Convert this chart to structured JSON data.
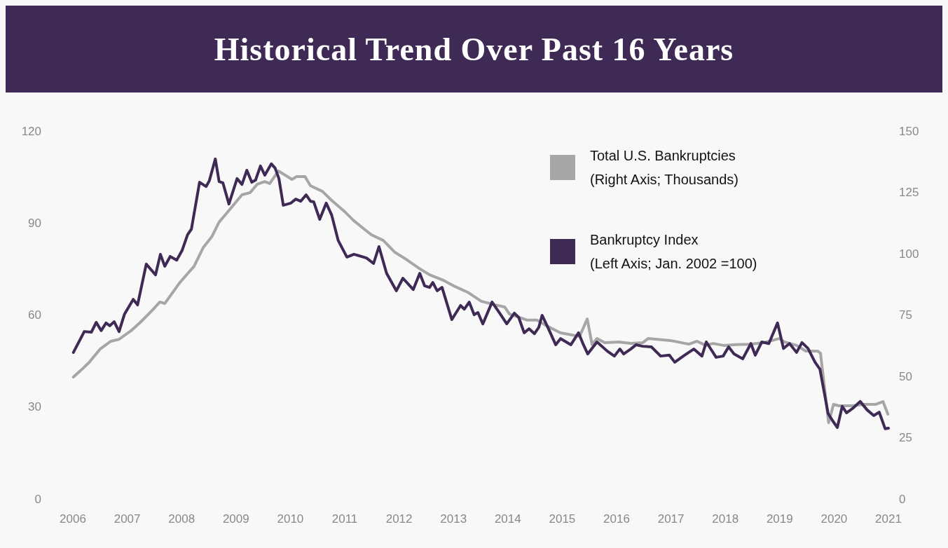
{
  "chart_data": {
    "type": "line",
    "title": "Historical Trend Over Past 16 Years",
    "xlim": [
      2006,
      2021
    ],
    "xticks": [
      2006,
      2007,
      2008,
      2009,
      2010,
      2011,
      2012,
      2013,
      2014,
      2015,
      2016,
      2017,
      2018,
      2019,
      2020,
      2021
    ],
    "ylim": [
      0,
      120
    ],
    "yticks": [
      0,
      30,
      60,
      90,
      120
    ],
    "y2lim": [
      0,
      150
    ],
    "y2ticks": [
      0,
      25,
      50,
      75,
      100,
      125,
      150
    ],
    "grid": false,
    "legend": "top right",
    "marker": "none",
    "line_style": "solid",
    "series": [
      {
        "name": "Total U.S. Bankruptcies (Right Axis; Thousands)",
        "color": "#a6a6a6",
        "axis": "y2",
        "x": [
          2006.01,
          2006.17,
          2006.3,
          2006.5,
          2006.7,
          2006.85,
          2007.07,
          2007.24,
          2007.46,
          2007.6,
          2007.69,
          2007.97,
          2008.23,
          2008.4,
          2008.56,
          2008.69,
          2008.82,
          2009.11,
          2009.26,
          2009.39,
          2009.53,
          2009.62,
          2009.78,
          2010.03,
          2010.11,
          2010.27,
          2010.37,
          2010.59,
          2010.76,
          2011.01,
          2011.17,
          2011.36,
          2011.49,
          2011.71,
          2011.92,
          2012.13,
          2012.35,
          2012.56,
          2012.82,
          2013.0,
          2013.26,
          2013.51,
          2013.77,
          2013.94,
          2014.03,
          2014.36,
          2014.54,
          2014.71,
          2014.97,
          2015.32,
          2015.46,
          2015.55,
          2015.64,
          2015.78,
          2016.04,
          2016.26,
          2016.48,
          2016.58,
          2016.99,
          2017.33,
          2017.48,
          2017.64,
          2017.77,
          2017.97,
          2018.19,
          2018.45,
          2018.71,
          2018.99,
          2019.09,
          2019.31,
          2019.48,
          2019.7,
          2019.75,
          2019.9,
          2019.99,
          2020.08,
          2020.34,
          2020.55,
          2020.77,
          2020.9,
          2020.99
        ],
        "values": [
          49.7,
          52.9,
          55.7,
          61.1,
          64.3,
          65.1,
          68.6,
          72.0,
          76.9,
          80.3,
          79.7,
          88.3,
          94.9,
          102.6,
          107.1,
          112.9,
          116.3,
          124.0,
          124.9,
          128.3,
          129.4,
          128.6,
          133.7,
          130.3,
          131.4,
          131.4,
          127.7,
          125.4,
          121.7,
          116.9,
          113.4,
          110.0,
          107.7,
          105.4,
          100.6,
          97.7,
          94.3,
          91.4,
          89.1,
          86.9,
          84.3,
          80.6,
          79.1,
          78.3,
          75.4,
          72.9,
          72.9,
          70.6,
          67.7,
          66.3,
          73.4,
          62.9,
          65.4,
          63.7,
          64.0,
          63.4,
          63.7,
          65.4,
          64.6,
          63.1,
          64.3,
          62.6,
          63.4,
          62.6,
          62.9,
          63.1,
          63.7,
          65.4,
          64.0,
          62.6,
          60.3,
          60.3,
          59.4,
          31.1,
          38.6,
          38.0,
          38.0,
          38.6,
          38.6,
          39.7,
          34.6
        ]
      },
      {
        "name": "Bankruptcy Index (Left Axis; Jan. 2002 =100)",
        "color": "#3f2a56",
        "x": [
          2006.01,
          2006.21,
          2006.34,
          2006.43,
          2006.52,
          2006.61,
          2006.68,
          2006.76,
          2006.85,
          2006.95,
          2007.11,
          2007.19,
          2007.35,
          2007.52,
          2007.61,
          2007.69,
          2007.79,
          2007.91,
          2008.01,
          2008.11,
          2008.18,
          2008.33,
          2008.45,
          2008.51,
          2008.62,
          2008.69,
          2008.76,
          2008.87,
          2009.02,
          2009.11,
          2009.2,
          2009.29,
          2009.36,
          2009.45,
          2009.53,
          2009.65,
          2009.72,
          2009.79,
          2009.87,
          2010.01,
          2010.1,
          2010.19,
          2010.29,
          2010.37,
          2010.43,
          2010.54,
          2010.66,
          2010.76,
          2010.88,
          2011.04,
          2011.17,
          2011.4,
          2011.53,
          2011.63,
          2011.77,
          2011.95,
          2012.07,
          2012.26,
          2012.38,
          2012.47,
          2012.56,
          2012.62,
          2012.7,
          2012.79,
          2012.97,
          2013.13,
          2013.2,
          2013.29,
          2013.38,
          2013.45,
          2013.54,
          2013.71,
          2013.85,
          2013.98,
          2014.12,
          2014.2,
          2014.3,
          2014.39,
          2014.49,
          2014.57,
          2014.63,
          2014.74,
          2014.88,
          2014.97,
          2015.16,
          2015.3,
          2015.39,
          2015.47,
          2015.64,
          2015.83,
          2015.96,
          2016.06,
          2016.13,
          2016.26,
          2016.36,
          2016.48,
          2016.64,
          2016.81,
          2016.97,
          2017.07,
          2017.25,
          2017.42,
          2017.57,
          2017.65,
          2017.83,
          2017.96,
          2018.06,
          2018.16,
          2018.32,
          2018.47,
          2018.55,
          2018.67,
          2018.8,
          2018.96,
          2019.07,
          2019.18,
          2019.31,
          2019.41,
          2019.52,
          2019.65,
          2019.74,
          2019.89,
          2019.97,
          2020.06,
          2020.15,
          2020.23,
          2020.34,
          2020.48,
          2020.61,
          2020.73,
          2020.83,
          2020.94,
          2021.0
        ],
        "values": [
          47.8,
          54.6,
          54.4,
          57.6,
          54.9,
          57.4,
          56.5,
          57.8,
          54.6,
          60.3,
          65.1,
          63.3,
          76.6,
          73.1,
          79.8,
          75.9,
          79.1,
          77.9,
          81.1,
          86.2,
          88.0,
          103.3,
          101.9,
          103.8,
          110.9,
          103.5,
          103.1,
          96.2,
          104.5,
          102.6,
          107.2,
          103.3,
          104.0,
          108.6,
          105.6,
          109.3,
          107.9,
          104.5,
          95.8,
          96.5,
          97.8,
          97.1,
          99.2,
          97.1,
          96.9,
          91.2,
          96.5,
          92.6,
          84.3,
          78.9,
          79.8,
          78.6,
          76.8,
          82.3,
          73.6,
          67.9,
          72.0,
          68.3,
          73.6,
          69.5,
          69.0,
          70.6,
          67.9,
          69.0,
          58.5,
          63.1,
          61.9,
          64.2,
          60.1,
          60.8,
          57.1,
          64.2,
          60.6,
          57.1,
          60.6,
          59.2,
          54.2,
          55.5,
          53.9,
          56.0,
          59.9,
          55.8,
          50.3,
          52.3,
          50.3,
          54.2,
          50.3,
          47.3,
          51.2,
          48.2,
          46.6,
          48.9,
          47.3,
          48.9,
          50.3,
          49.8,
          49.6,
          46.6,
          46.9,
          44.6,
          46.9,
          48.9,
          46.6,
          51.2,
          46.2,
          46.6,
          49.6,
          47.3,
          45.7,
          50.7,
          46.9,
          51.2,
          50.7,
          57.4,
          49.1,
          50.7,
          47.8,
          51.0,
          49.1,
          44.6,
          42.3,
          27.9,
          25.6,
          23.3,
          30.2,
          28.1,
          29.5,
          31.8,
          29.0,
          27.2,
          28.3,
          22.9,
          23.1
        ]
      }
    ]
  }
}
